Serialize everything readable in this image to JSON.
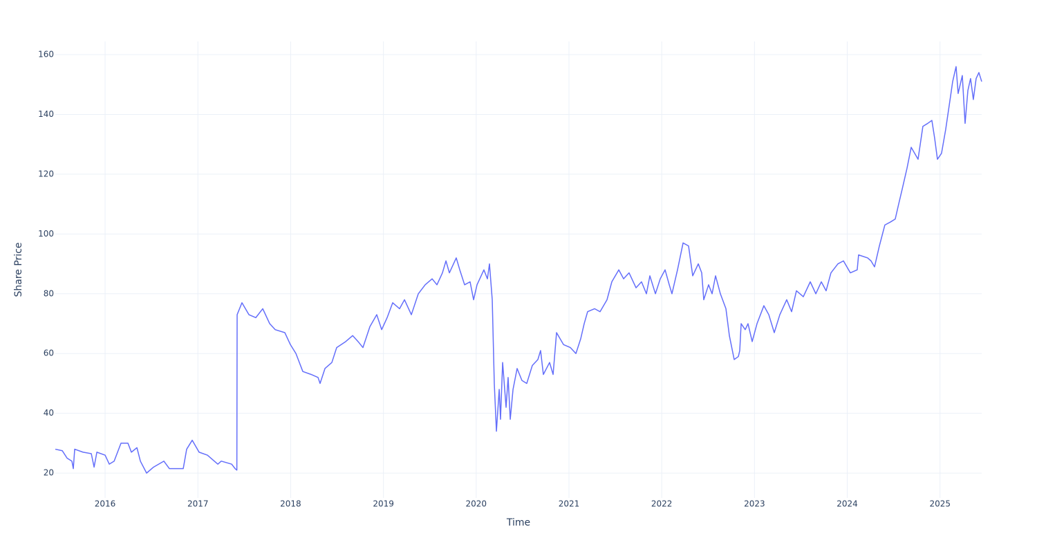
{
  "chart_data": {
    "type": "line",
    "x_label": "Time",
    "y_label": "Share Price",
    "xlim": [
      2015.463,
      2025.449
    ],
    "ylim": [
      11.7,
      164.4
    ],
    "xticks": [
      2016,
      2017,
      2018,
      2019,
      2020,
      2021,
      2022,
      2023,
      2024,
      2025
    ],
    "yticks": [
      20,
      40,
      60,
      80,
      100,
      120,
      140,
      160
    ],
    "grid": true,
    "series": [
      {
        "color": "#636efa",
        "x": [
          2015.463,
          2015.538,
          2015.59,
          2015.642,
          2015.657,
          2015.672,
          2015.762,
          2015.851,
          2015.881,
          2015.911,
          2016.0,
          2016.045,
          2016.097,
          2016.171,
          2016.246,
          2016.283,
          2016.343,
          2016.38,
          2016.447,
          2016.522,
          2016.633,
          2016.693,
          2016.842,
          2016.879,
          2016.939,
          2017.013,
          2017.103,
          2017.177,
          2017.215,
          2017.252,
          2017.364,
          2017.401,
          2017.42,
          2017.423,
          2017.475,
          2017.55,
          2017.624,
          2017.699,
          2017.774,
          2017.833,
          2017.937,
          2017.997,
          2018.057,
          2018.131,
          2018.221,
          2018.295,
          2018.317,
          2018.37,
          2018.444,
          2018.496,
          2018.593,
          2018.668,
          2018.727,
          2018.779,
          2018.854,
          2018.928,
          2018.981,
          2019.04,
          2019.1,
          2019.174,
          2019.227,
          2019.301,
          2019.376,
          2019.45,
          2019.525,
          2019.577,
          2019.636,
          2019.674,
          2019.711,
          2019.785,
          2019.823,
          2019.875,
          2019.934,
          2019.972,
          2020.009,
          2020.083,
          2020.121,
          2020.143,
          2020.173,
          2020.195,
          2020.218,
          2020.248,
          2020.262,
          2020.285,
          2020.322,
          2020.344,
          2020.367,
          2020.397,
          2020.441,
          2020.493,
          2020.545,
          2020.605,
          2020.665,
          2020.694,
          2020.724,
          2020.791,
          2020.829,
          2020.866,
          2020.941,
          2021.015,
          2021.075,
          2021.127,
          2021.164,
          2021.201,
          2021.276,
          2021.335,
          2021.41,
          2021.462,
          2021.537,
          2021.589,
          2021.648,
          2021.723,
          2021.782,
          2021.835,
          2021.872,
          2021.932,
          2021.984,
          2022.036,
          2022.081,
          2022.11,
          2022.17,
          2022.23,
          2022.289,
          2022.334,
          2022.394,
          2022.431,
          2022.453,
          2022.505,
          2022.543,
          2022.58,
          2022.632,
          2022.692,
          2022.729,
          2022.781,
          2022.826,
          2022.841,
          2022.856,
          2022.9,
          2022.93,
          2022.975,
          2023.027,
          2023.101,
          2023.154,
          2023.213,
          2023.273,
          2023.347,
          2023.4,
          2023.452,
          2023.526,
          2023.601,
          2023.661,
          2023.72,
          2023.772,
          2023.824,
          2023.899,
          2023.959,
          2024.033,
          2024.107,
          2024.122,
          2024.219,
          2024.256,
          2024.294,
          2024.346,
          2024.405,
          2024.465,
          2024.517,
          2024.554,
          2024.592,
          2024.644,
          2024.689,
          2024.763,
          2024.815,
          2024.867,
          2024.912,
          2024.942,
          2024.972,
          2025.016,
          2025.061,
          2025.113,
          2025.136,
          2025.173,
          2025.195,
          2025.24,
          2025.27,
          2025.3,
          2025.329,
          2025.359,
          2025.389,
          2025.419,
          2025.449
        ],
        "values": [
          28,
          27.5,
          25,
          24,
          21.5,
          28,
          27,
          26.5,
          22,
          27,
          26,
          23,
          24,
          30,
          30,
          27,
          28.5,
          24,
          20,
          22,
          24,
          21.5,
          21.5,
          28,
          31,
          27,
          26,
          24,
          23,
          24,
          23,
          21.5,
          21,
          73,
          77,
          73,
          72,
          75,
          70,
          68,
          67,
          63,
          60,
          54,
          53,
          52,
          50,
          55,
          57,
          62,
          64,
          66,
          64,
          62,
          69,
          73,
          68,
          72,
          77,
          75,
          78,
          73,
          80,
          83,
          85,
          83,
          87,
          91,
          87,
          92,
          88,
          83,
          84,
          78,
          83,
          88,
          85,
          90,
          78,
          50,
          34,
          48,
          38,
          57,
          42,
          52,
          38,
          48,
          55,
          51,
          50,
          56,
          58,
          61,
          53,
          57,
          53,
          67,
          63,
          62,
          60,
          65,
          70,
          74,
          75,
          74,
          78,
          84,
          88,
          85,
          87,
          82,
          84,
          80,
          86,
          80,
          85,
          88,
          83,
          80,
          88,
          97,
          96,
          86,
          90,
          87,
          78,
          83,
          80,
          86,
          80,
          75,
          66,
          58,
          59,
          61,
          70,
          68,
          70,
          64,
          70,
          76,
          73,
          67,
          73,
          78,
          74,
          81,
          79,
          84,
          80,
          84,
          81,
          87,
          90,
          91,
          87,
          88,
          93,
          92,
          91,
          89,
          96,
          103,
          104,
          105,
          110,
          115,
          122,
          129,
          125,
          136,
          137,
          138,
          132,
          125,
          127,
          135,
          146,
          151,
          156,
          147,
          153,
          137,
          148,
          152,
          145,
          152,
          154,
          151
        ]
      }
    ]
  }
}
